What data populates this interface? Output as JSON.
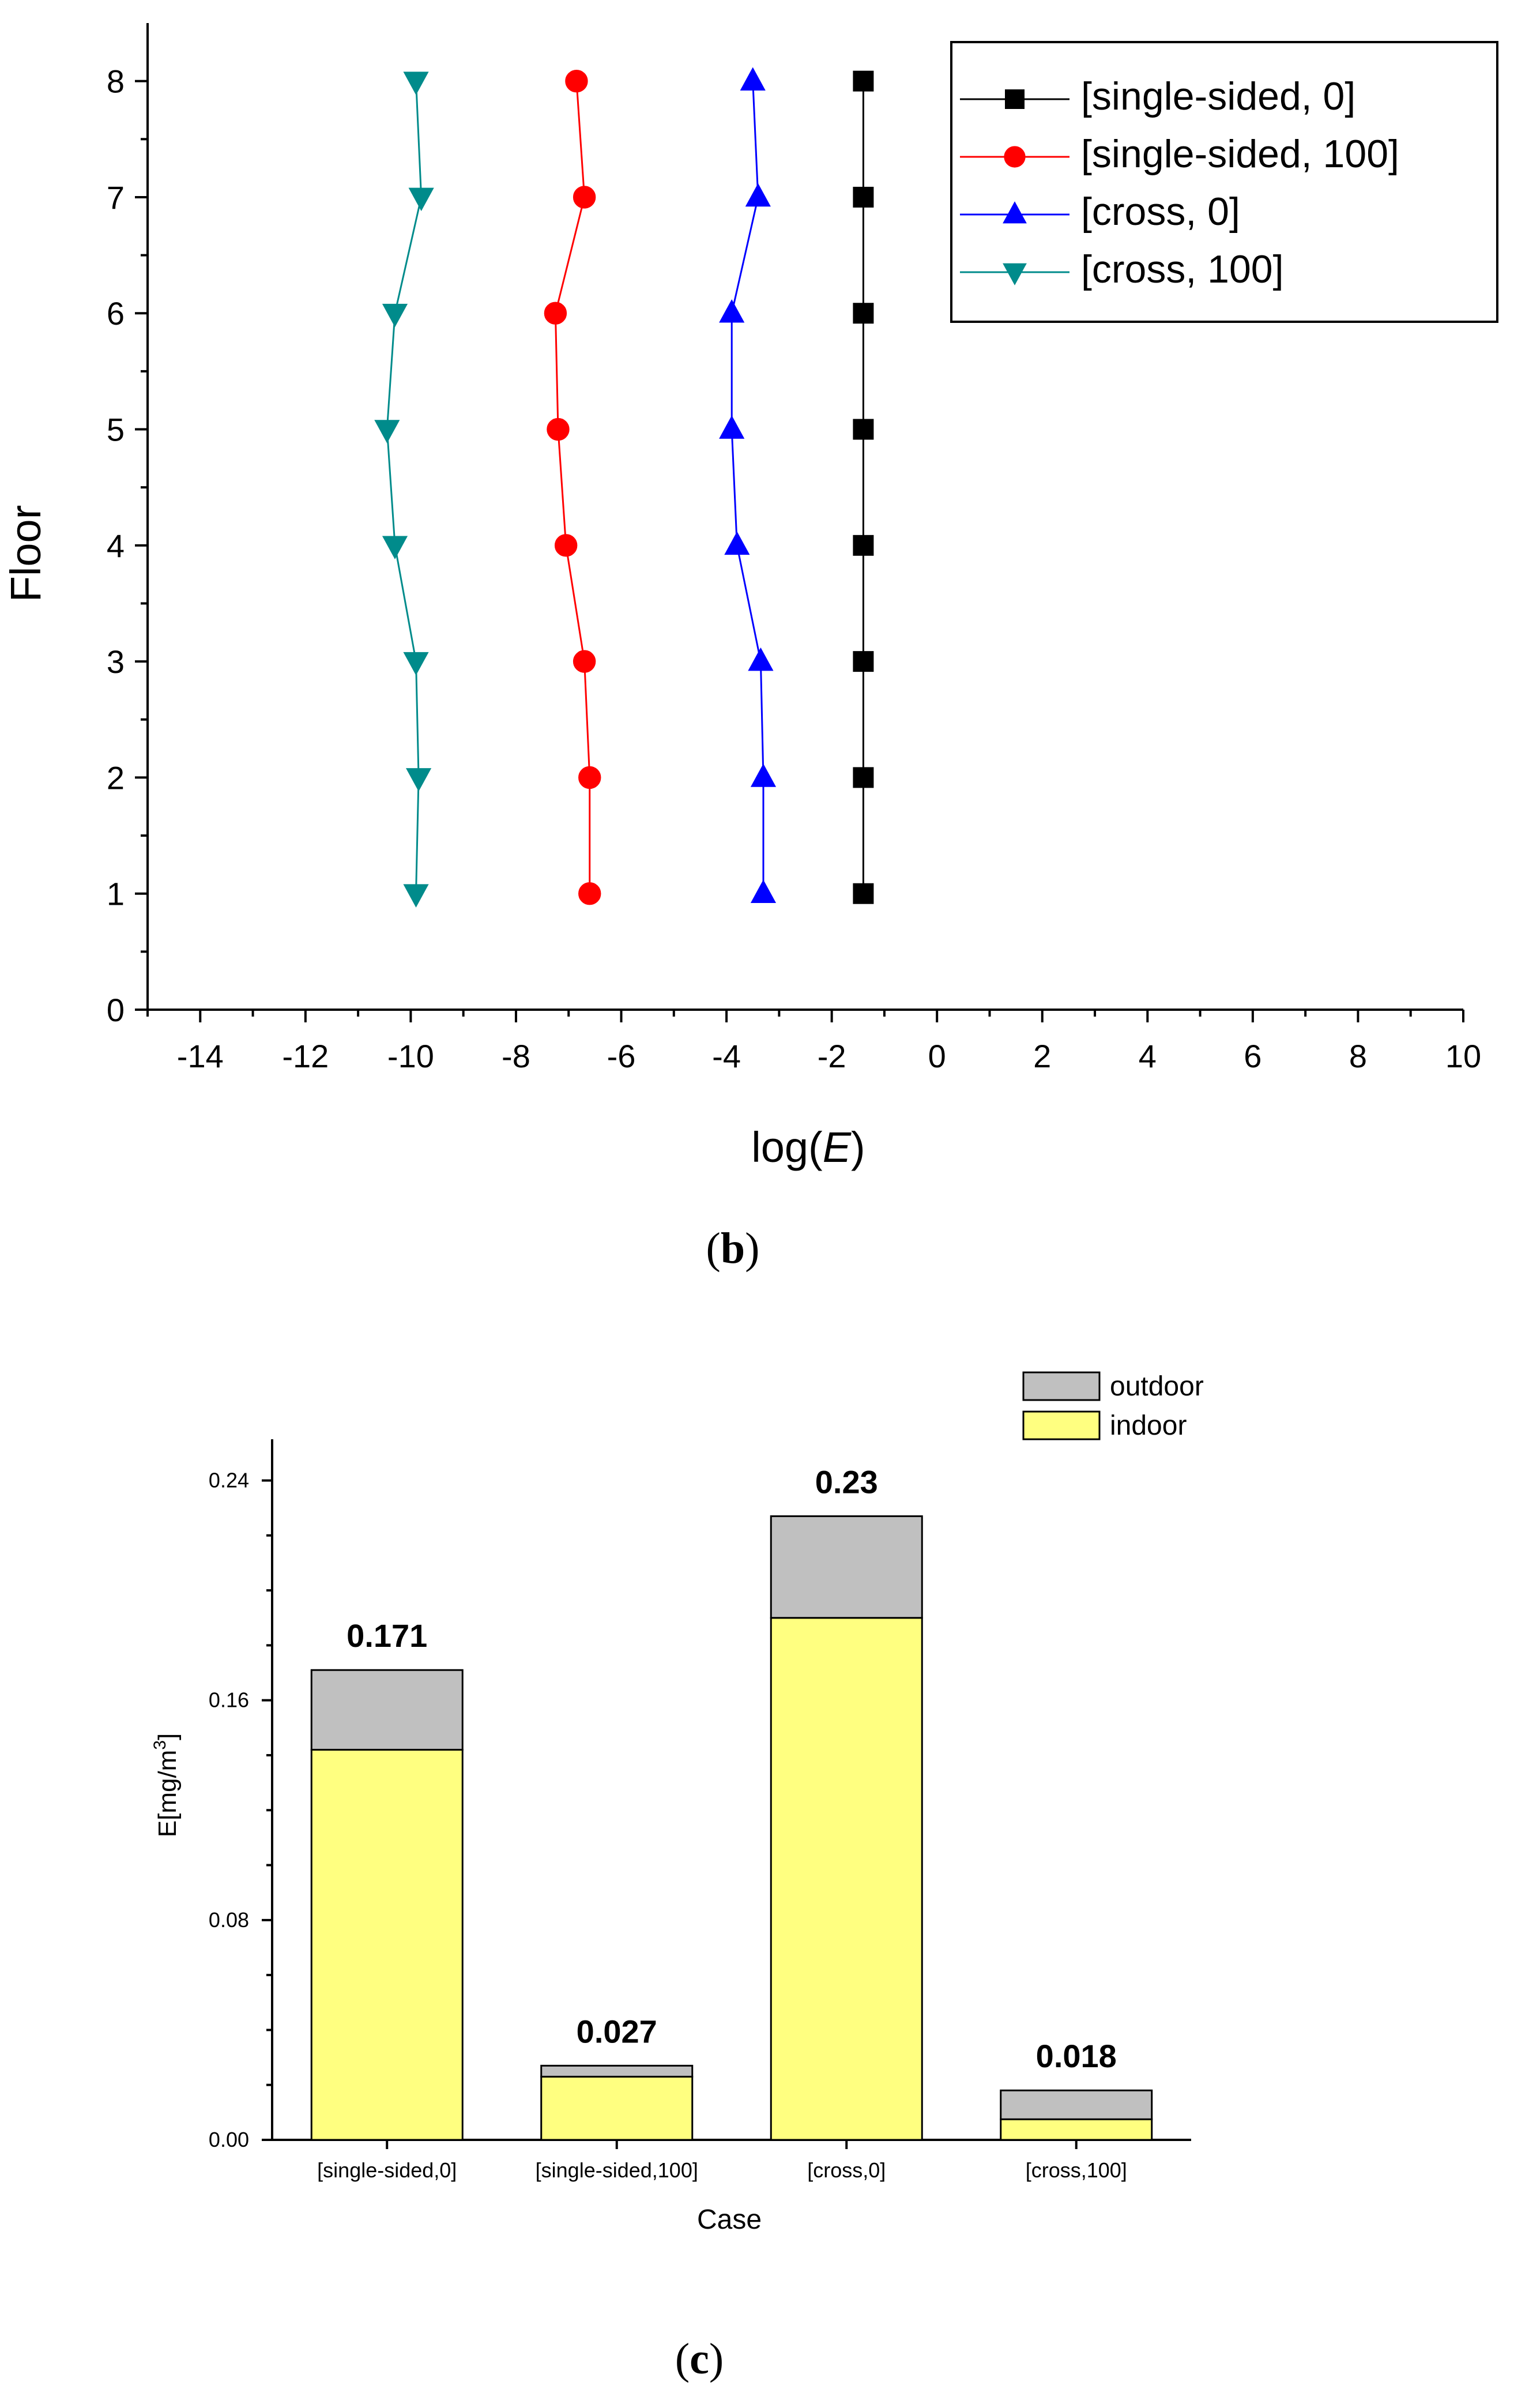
{
  "colors": {
    "black": "#000000",
    "red": "#ff0000",
    "blue": "#0000ff",
    "teal": "#008b8b",
    "outdoor": "#c0c0c0",
    "indoor": "#ffff80"
  },
  "chart_data": [
    {
      "type": "line",
      "panel_label": "b",
      "xlabel": "log(E)",
      "ylabel": "Floor",
      "xlim": [
        -15,
        10
      ],
      "ylim": [
        0,
        8.5
      ],
      "xticks": [
        -14,
        -12,
        -10,
        -8,
        -6,
        -4,
        -2,
        0,
        2,
        4,
        6,
        8,
        10
      ],
      "xtick_labels": [
        "-14",
        "-12",
        "-10",
        "-8",
        "-6",
        "-4",
        "-2",
        "0",
        "2",
        "4",
        "6",
        "8",
        "10"
      ],
      "yticks": [
        0,
        1,
        2,
        3,
        4,
        5,
        6,
        7,
        8
      ],
      "ytick_labels": [
        "0",
        "1",
        "2",
        "3",
        "4",
        "5",
        "6",
        "7",
        "8"
      ],
      "legend_position": "top-right",
      "floors": [
        1,
        2,
        3,
        4,
        5,
        6,
        7,
        8
      ],
      "series": [
        {
          "name": "[single-sided, 0]",
          "marker": "square",
          "color": "#000000",
          "values": [
            -1.4,
            -1.4,
            -1.4,
            -1.4,
            -1.4,
            -1.4,
            -1.4,
            -1.4
          ]
        },
        {
          "name": "[single-sided, 100]",
          "marker": "circle",
          "color": "#ff0000",
          "values": [
            -6.6,
            -6.6,
            -6.7,
            -7.05,
            -7.2,
            -7.25,
            -6.7,
            -6.85
          ]
        },
        {
          "name": "[cross, 0]",
          "marker": "triangle-up",
          "color": "#0000ff",
          "values": [
            -3.3,
            -3.3,
            -3.35,
            -3.8,
            -3.9,
            -3.9,
            -3.4,
            -3.5
          ]
        },
        {
          "name": "[cross, 100]",
          "marker": "triangle-down",
          "color": "#008b8b",
          "values": [
            -9.9,
            -9.85,
            -9.9,
            -10.3,
            -10.45,
            -10.3,
            -9.8,
            -9.9
          ]
        }
      ]
    },
    {
      "type": "bar",
      "stacked": true,
      "panel_label": "c",
      "xlabel": "Case",
      "ylabel_main": "E[mg/m",
      "ylabel_sup": "3",
      "ylabel_end": "]",
      "ylim": [
        0,
        0.255
      ],
      "yticks": [
        0,
        0.08,
        0.16,
        0.24
      ],
      "ytick_labels": [
        "0.00",
        "0.08",
        "0.16",
        "0.24"
      ],
      "categories": [
        "[single-sided,0]",
        "[single-sided,100]",
        "[cross,0]",
        "[cross,100]"
      ],
      "legend_position": "top-right",
      "series": [
        {
          "name": "indoor",
          "color": "#ffff80",
          "values": [
            0.142,
            0.023,
            0.19,
            0.0075
          ]
        },
        {
          "name": "outdoor",
          "color": "#c0c0c0",
          "values": [
            0.029,
            0.004,
            0.037,
            0.0105
          ]
        }
      ],
      "totals": [
        0.171,
        0.027,
        0.227,
        0.018
      ],
      "data_labels": [
        "0.171",
        "0.027",
        "0.23",
        "0.018"
      ]
    }
  ]
}
